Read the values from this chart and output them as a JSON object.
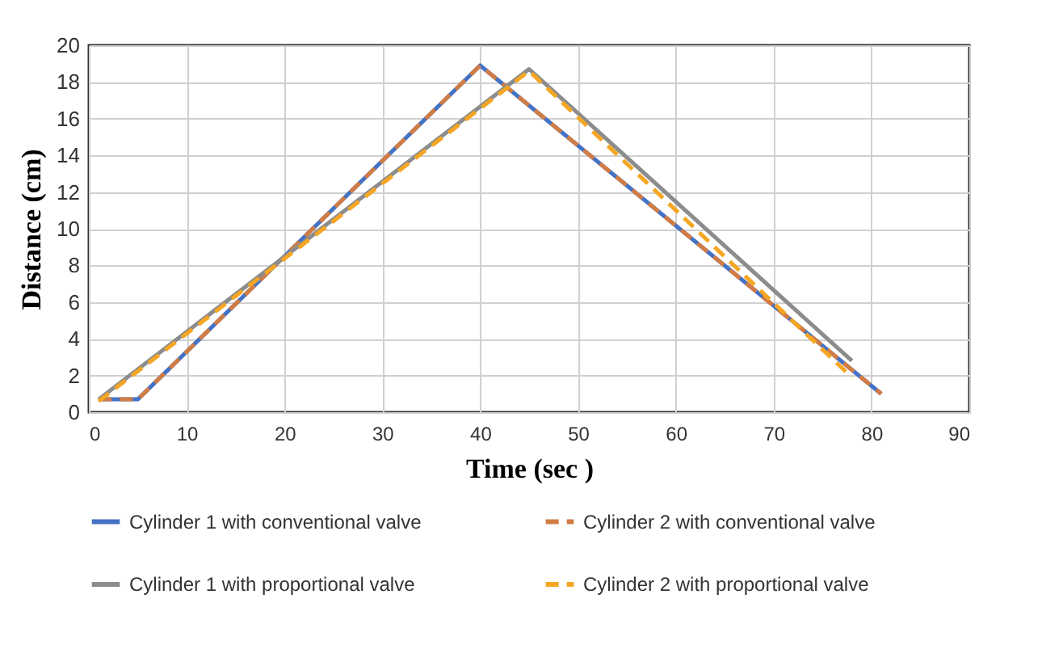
{
  "chart_data": {
    "type": "line",
    "xlabel": "Time (sec )",
    "ylabel": "Distance (cm)",
    "xlim": [
      0,
      90
    ],
    "xticks": [
      0,
      10,
      20,
      30,
      40,
      50,
      60,
      70,
      80,
      90
    ],
    "ylim": [
      0,
      20
    ],
    "yticks": [
      0,
      2,
      4,
      6,
      8,
      10,
      12,
      14,
      16,
      18,
      20
    ],
    "grid": true,
    "legend": "bottom",
    "marker": "none",
    "series": [
      {
        "name": "Cylinder 1 with conventional valve",
        "color": "#4472c4",
        "line_style": "solid",
        "x": [
          1,
          5,
          40,
          81
        ],
        "values": [
          0.7,
          0.7,
          18.9,
          1.0
        ]
      },
      {
        "name": "Cylinder 2 with conventional valve",
        "color": "#d27c45",
        "line_style": "dashed",
        "x": [
          1,
          5,
          40,
          81
        ],
        "values": [
          0.7,
          0.7,
          18.9,
          1.0
        ]
      },
      {
        "name": "Cylinder 1 with proportional valve",
        "color": "#8c8c8c",
        "line_style": "solid",
        "x": [
          1,
          45,
          78
        ],
        "values": [
          0.7,
          18.7,
          2.8
        ]
      },
      {
        "name": "Cylinder 2 with proportional valve",
        "color": "#f5a623",
        "line_style": "dashed",
        "x": [
          1,
          45,
          78
        ],
        "values": [
          0.6,
          18.6,
          1.9
        ]
      }
    ]
  }
}
